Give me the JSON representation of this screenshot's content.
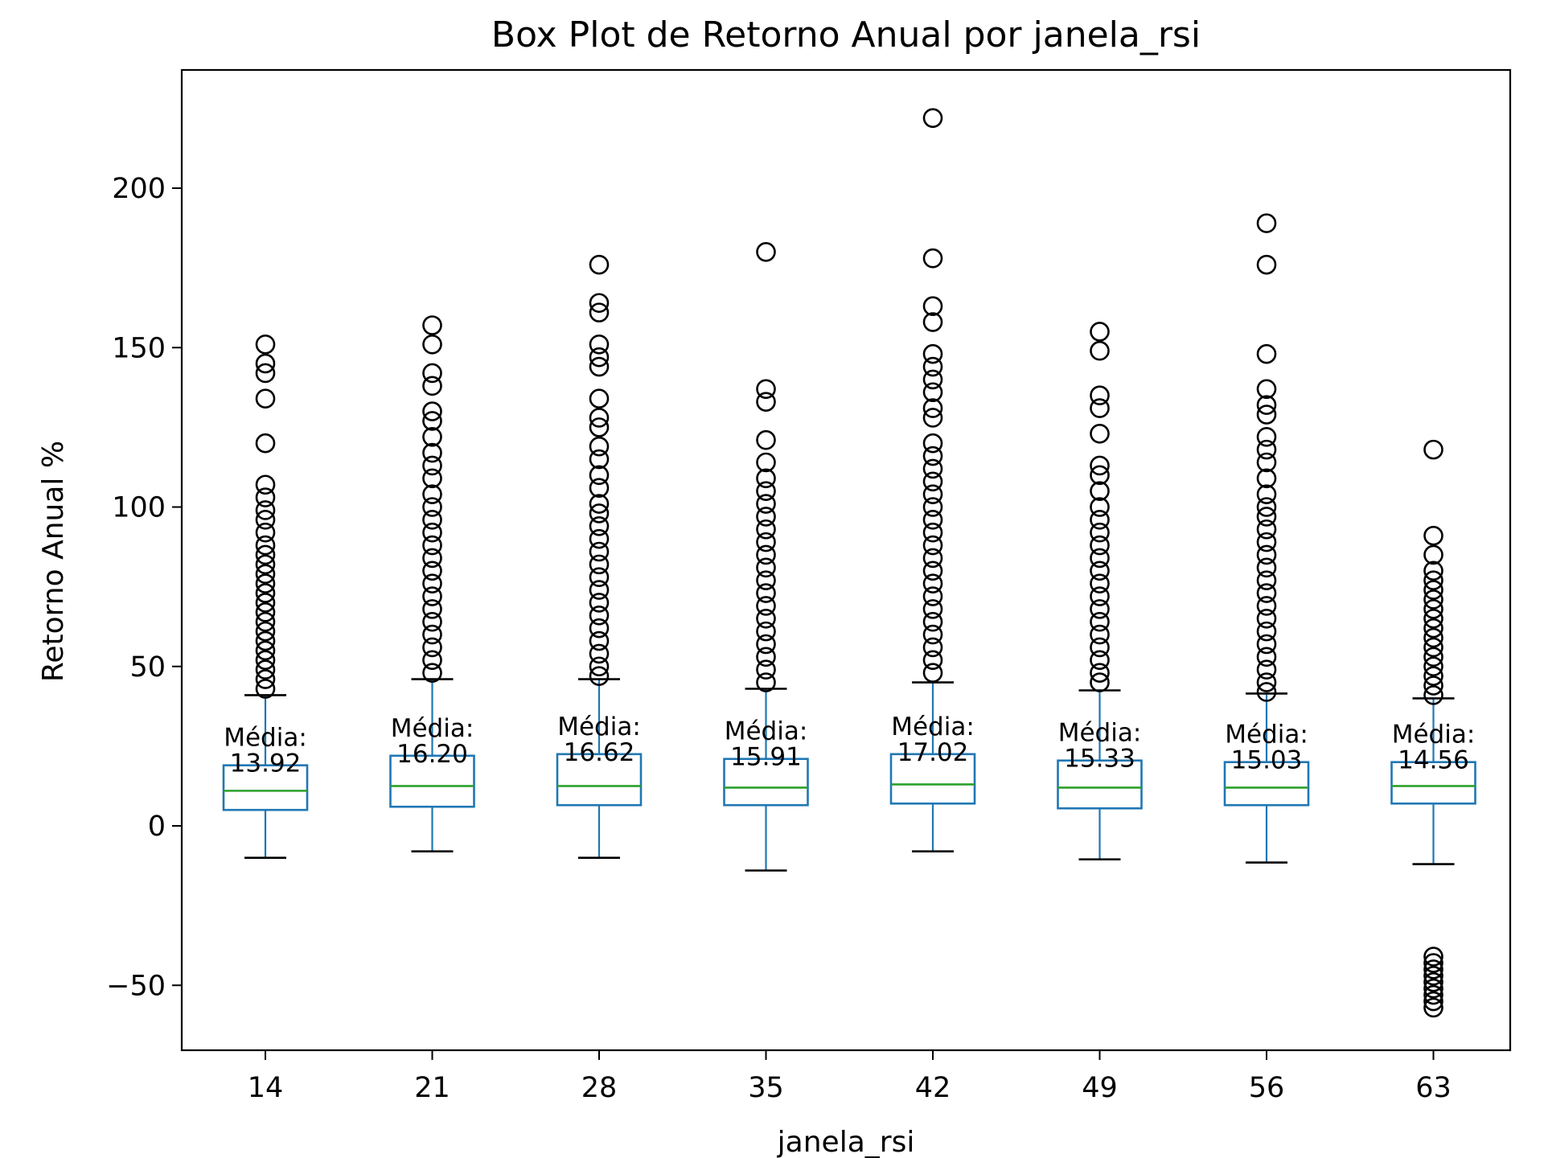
{
  "chart_data": {
    "type": "box",
    "title": "Box Plot de Retorno Anual por janela_rsi",
    "xlabel": "janela_rsi",
    "ylabel": "Retorno Anual %",
    "ylim": [
      -70,
      237
    ],
    "yticks": [
      -50,
      0,
      50,
      100,
      150,
      200
    ],
    "ytick_labels": [
      "−50",
      "0",
      "50",
      "100",
      "150",
      "200"
    ],
    "grid": false,
    "legend": "none",
    "colors": {
      "box": "#1f77b4",
      "median": "#2ca02c",
      "whisker_cap": "#000000",
      "flier": "#000000",
      "axes": "#000000"
    },
    "mean_prefix": "Média:",
    "groups": [
      {
        "label": "14",
        "q1": 5,
        "median": 11,
        "q3": 19,
        "whisker_low": -10,
        "whisker_high": 41,
        "mean": "13.92",
        "fliers": [
          151,
          145,
          142,
          134,
          120,
          107,
          103,
          99,
          96,
          92,
          88,
          85,
          82,
          79,
          76,
          73,
          70,
          67,
          64,
          61,
          58,
          55,
          52,
          49,
          46,
          43
        ]
      },
      {
        "label": "21",
        "q1": 6,
        "median": 12.5,
        "q3": 22,
        "whisker_low": -8,
        "whisker_high": 46,
        "mean": "16.20",
        "fliers": [
          157,
          151,
          142,
          138,
          130,
          127,
          122,
          117,
          113,
          109,
          104,
          100,
          96,
          92,
          88,
          84,
          80,
          76,
          72,
          68,
          64,
          60,
          56,
          52,
          48
        ]
      },
      {
        "label": "28",
        "q1": 6.5,
        "median": 12.5,
        "q3": 22.5,
        "whisker_low": -10,
        "whisker_high": 46,
        "mean": "16.62",
        "fliers": [
          176,
          164,
          161,
          151,
          147,
          144,
          134,
          128,
          125,
          119,
          115,
          110,
          106,
          101,
          98,
          94,
          90,
          86,
          82,
          78,
          74,
          70,
          66,
          62,
          58,
          54,
          50,
          47
        ]
      },
      {
        "label": "35",
        "q1": 6.5,
        "median": 12,
        "q3": 21,
        "whisker_low": -14,
        "whisker_high": 43,
        "mean": "15.91",
        "fliers": [
          180,
          137,
          133,
          121,
          114,
          109,
          105,
          101,
          97,
          93,
          89,
          85,
          81,
          77,
          73,
          69,
          65,
          61,
          57,
          53,
          49,
          45
        ]
      },
      {
        "label": "42",
        "q1": 7,
        "median": 13,
        "q3": 22.5,
        "whisker_low": -8,
        "whisker_high": 45,
        "mean": "17.02",
        "fliers": [
          222,
          178,
          163,
          158,
          148,
          144,
          140,
          136,
          131,
          128,
          120,
          116,
          112,
          108,
          104,
          100,
          96,
          92,
          88,
          84,
          80,
          76,
          72,
          68,
          64,
          60,
          56,
          52,
          48
        ]
      },
      {
        "label": "49",
        "q1": 5.5,
        "median": 12,
        "q3": 20.5,
        "whisker_low": -10.5,
        "whisker_high": 42.5,
        "mean": "15.33",
        "fliers": [
          155,
          149,
          135,
          131,
          123,
          113,
          110,
          105,
          100,
          96,
          92,
          88,
          84,
          80,
          76,
          72,
          68,
          64,
          60,
          56,
          52,
          48,
          45
        ]
      },
      {
        "label": "56",
        "q1": 6.5,
        "median": 12,
        "q3": 20,
        "whisker_low": -11.5,
        "whisker_high": 41.5,
        "mean": "15.03",
        "fliers": [
          189,
          176,
          148,
          137,
          132,
          129,
          122,
          118,
          114,
          109,
          104,
          100,
          97,
          93,
          89,
          85,
          81,
          77,
          73,
          69,
          65,
          61,
          57,
          53,
          49,
          45,
          42
        ]
      },
      {
        "label": "63",
        "q1": 7,
        "median": 12.5,
        "q3": 20,
        "whisker_low": -12,
        "whisker_high": 40,
        "mean": "14.56",
        "fliers": [
          118,
          91,
          85,
          80,
          77,
          74,
          71,
          68,
          65,
          62,
          59,
          56,
          53,
          50,
          47,
          44,
          41,
          -41,
          -43,
          -45,
          -47,
          -49,
          -51,
          -53,
          -55,
          -57
        ]
      }
    ]
  }
}
